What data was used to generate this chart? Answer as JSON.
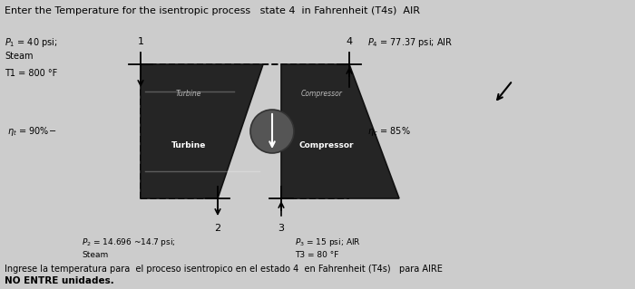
{
  "title": "Enter the Temperature for the isentropic process   state 4  in Fahrenheit (T4s)  AIR",
  "bg_color": "#cccccc",
  "label_p1": "P1 = 40 psi;",
  "label_steam1": "Steam",
  "label_t1": "T1 = 800 F",
  "label_p4": "P4 = 77.37 psi; AIR",
  "label_turbine": "Turbine",
  "label_compressor": "Compressor",
  "label_p2": "P2 = 14.696 ~14.7 psi;",
  "label_steam2": "Steam",
  "label_p3": "P3 = 15 psi; AIR",
  "label_t3": "T3 = 80 F",
  "footer1": "Ingrese la temperatura para  el proceso isentropico en el estado 4  en Fahrenheit (T4s)   para AIRE",
  "footer2": "NO ENTRE unidades.",
  "state1": "1",
  "state2": "2",
  "state3": "3",
  "state4": "4",
  "turb_color": "#252525",
  "comp_color": "#252525",
  "shaft_color": "#555555",
  "highlight_color": "#888888",
  "dash_color": "#000000",
  "fig_bg": "#cccccc"
}
